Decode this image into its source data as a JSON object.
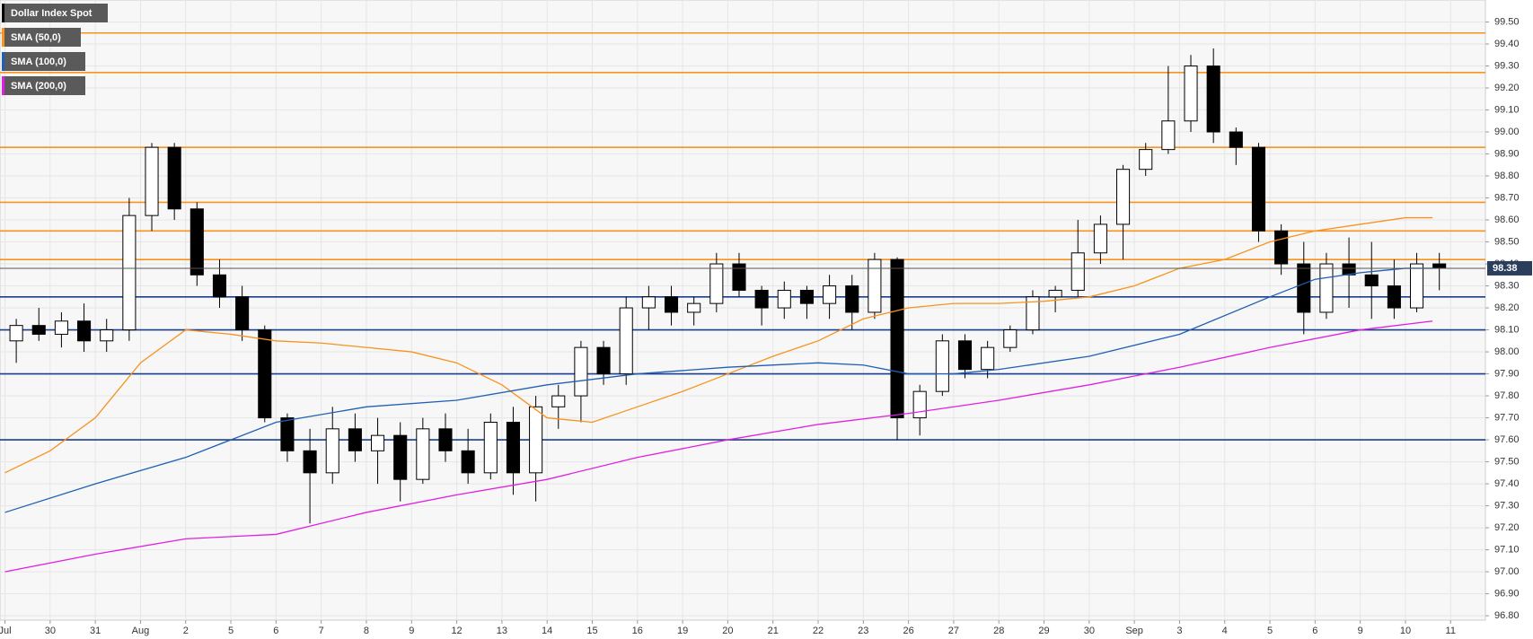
{
  "chart_data": {
    "type": "candlestick",
    "name": "Dollar Index Spot",
    "xlim": [
      -0.11,
      32.77
    ],
    "ylim": [
      96.78,
      99.6
    ],
    "grid": true,
    "xticks": [
      {
        "value": 0,
        "label": "Jul"
      },
      {
        "value": 1,
        "label": "30"
      },
      {
        "value": 2,
        "label": "31"
      },
      {
        "value": 3,
        "label": "Aug"
      },
      {
        "value": 4,
        "label": "2"
      },
      {
        "value": 5,
        "label": "5"
      },
      {
        "value": 6,
        "label": "6"
      },
      {
        "value": 7,
        "label": "7"
      },
      {
        "value": 8,
        "label": "8"
      },
      {
        "value": 9,
        "label": "9"
      },
      {
        "value": 10,
        "label": "12"
      },
      {
        "value": 11,
        "label": "13"
      },
      {
        "value": 12,
        "label": "14"
      },
      {
        "value": 13,
        "label": "15"
      },
      {
        "value": 14,
        "label": "16"
      },
      {
        "value": 15,
        "label": "19"
      },
      {
        "value": 16,
        "label": "20"
      },
      {
        "value": 17,
        "label": "21"
      },
      {
        "value": 18,
        "label": "22"
      },
      {
        "value": 19,
        "label": "23"
      },
      {
        "value": 20,
        "label": "26"
      },
      {
        "value": 21,
        "label": "27"
      },
      {
        "value": 22,
        "label": "28"
      },
      {
        "value": 23,
        "label": "29"
      },
      {
        "value": 24,
        "label": "30"
      },
      {
        "value": 25,
        "label": "Sep"
      },
      {
        "value": 26,
        "label": "3"
      },
      {
        "value": 27,
        "label": "4"
      },
      {
        "value": 28,
        "label": "5"
      },
      {
        "value": 29,
        "label": "6"
      },
      {
        "value": 30,
        "label": "9"
      },
      {
        "value": 31,
        "label": "10"
      },
      {
        "value": 32,
        "label": "11"
      }
    ],
    "yticks": [
      {
        "value": 96.8,
        "label": "96.80"
      },
      {
        "value": 96.9,
        "label": "96.90"
      },
      {
        "value": 97.0,
        "label": "97.00"
      },
      {
        "value": 97.1,
        "label": "97.10"
      },
      {
        "value": 97.2,
        "label": "97.20"
      },
      {
        "value": 97.3,
        "label": "97.30"
      },
      {
        "value": 97.4,
        "label": "97.40"
      },
      {
        "value": 97.5,
        "label": "97.50"
      },
      {
        "value": 97.6,
        "label": "97.60"
      },
      {
        "value": 97.7,
        "label": "97.70"
      },
      {
        "value": 97.8,
        "label": "97.80"
      },
      {
        "value": 97.9,
        "label": "97.90"
      },
      {
        "value": 98.0,
        "label": "98.00"
      },
      {
        "value": 98.1,
        "label": "98.10"
      },
      {
        "value": 98.2,
        "label": "98.20"
      },
      {
        "value": 98.3,
        "label": "98.30"
      },
      {
        "value": 98.4,
        "label": "98.40"
      },
      {
        "value": 98.5,
        "label": "98.50"
      },
      {
        "value": 98.6,
        "label": "98.60"
      },
      {
        "value": 98.7,
        "label": "98.70"
      },
      {
        "value": 98.8,
        "label": "98.80"
      },
      {
        "value": 98.9,
        "label": "98.90"
      },
      {
        "value": 99.0,
        "label": "99.00"
      },
      {
        "value": 99.1,
        "label": "99.10"
      },
      {
        "value": 99.2,
        "label": "99.20"
      },
      {
        "value": 99.3,
        "label": "99.30"
      },
      {
        "value": 99.4,
        "label": "99.40"
      },
      {
        "value": 99.5,
        "label": "99.50"
      }
    ],
    "x": [
      0.25,
      0.75,
      1.25,
      1.75,
      2.25,
      2.75,
      3.25,
      3.75,
      4.25,
      4.75,
      5.25,
      5.75,
      6.25,
      6.75,
      7.25,
      7.75,
      8.25,
      8.75,
      9.25,
      9.75,
      10.25,
      10.75,
      11.25,
      11.75,
      12.25,
      12.75,
      13.25,
      13.75,
      14.25,
      14.75,
      15.25,
      15.75,
      16.25,
      16.75,
      17.25,
      17.75,
      18.25,
      18.75,
      19.25,
      19.75,
      20.25,
      20.75,
      21.25,
      21.75,
      22.25,
      22.75,
      23.25,
      23.75,
      24.25,
      24.75,
      25.25,
      25.75,
      26.25,
      26.75,
      27.25,
      27.75,
      28.25,
      28.75,
      29.25,
      29.75,
      30.25,
      30.75,
      31.25,
      31.75
    ],
    "open": [
      98.05,
      98.12,
      98.08,
      98.14,
      98.05,
      98.1,
      98.62,
      98.93,
      98.65,
      98.35,
      98.25,
      98.1,
      97.7,
      97.55,
      97.45,
      97.65,
      97.55,
      97.62,
      97.42,
      97.65,
      97.55,
      97.45,
      97.68,
      97.45,
      97.75,
      97.8,
      98.02,
      97.9,
      98.2,
      98.25,
      98.18,
      98.22,
      98.4,
      98.28,
      98.2,
      98.28,
      98.22,
      98.3,
      98.18,
      98.42,
      97.7,
      97.82,
      98.05,
      97.92,
      98.02,
      98.1,
      98.25,
      98.28,
      98.45,
      98.58,
      98.83,
      98.92,
      99.05,
      99.3,
      99.0,
      98.93,
      98.55,
      98.4,
      98.18,
      98.4,
      98.35,
      98.3,
      98.2,
      98.4
    ],
    "high": [
      98.15,
      98.2,
      98.18,
      98.22,
      98.15,
      98.7,
      98.95,
      98.95,
      98.68,
      98.42,
      98.3,
      98.12,
      97.72,
      97.65,
      97.75,
      97.72,
      97.7,
      97.68,
      97.7,
      97.72,
      97.65,
      97.72,
      97.75,
      97.8,
      97.85,
      98.05,
      98.05,
      98.25,
      98.3,
      98.3,
      98.25,
      98.45,
      98.45,
      98.3,
      98.32,
      98.3,
      98.35,
      98.35,
      98.45,
      98.43,
      97.85,
      98.08,
      98.08,
      98.05,
      98.12,
      98.28,
      98.3,
      98.6,
      98.62,
      98.85,
      98.95,
      99.3,
      99.35,
      99.38,
      99.02,
      98.95,
      98.58,
      98.5,
      98.45,
      98.52,
      98.5,
      98.42,
      98.45,
      98.45
    ],
    "low": [
      97.95,
      98.05,
      98.02,
      98.0,
      98.0,
      98.05,
      98.55,
      98.6,
      98.3,
      98.2,
      98.05,
      97.68,
      97.5,
      97.22,
      97.4,
      97.5,
      97.4,
      97.32,
      97.4,
      97.5,
      97.4,
      97.42,
      97.35,
      97.32,
      97.65,
      97.68,
      97.85,
      97.85,
      98.1,
      98.12,
      98.12,
      98.18,
      98.25,
      98.12,
      98.15,
      98.15,
      98.15,
      98.1,
      98.15,
      97.6,
      97.62,
      97.8,
      97.88,
      97.88,
      98.0,
      98.08,
      98.18,
      98.25,
      98.4,
      98.42,
      98.8,
      98.9,
      99.0,
      98.95,
      98.85,
      98.5,
      98.35,
      98.08,
      98.15,
      98.2,
      98.15,
      98.15,
      98.18,
      98.28
    ],
    "close": [
      98.12,
      98.08,
      98.14,
      98.05,
      98.1,
      98.62,
      98.93,
      98.65,
      98.35,
      98.25,
      98.1,
      97.7,
      97.55,
      97.45,
      97.65,
      97.55,
      97.62,
      97.42,
      97.65,
      97.55,
      97.45,
      97.68,
      97.45,
      97.75,
      97.8,
      98.02,
      97.9,
      98.2,
      98.25,
      98.18,
      98.22,
      98.4,
      98.28,
      98.2,
      98.28,
      98.22,
      98.3,
      98.18,
      98.42,
      97.7,
      97.82,
      98.05,
      97.92,
      98.02,
      98.1,
      98.25,
      98.28,
      98.45,
      98.58,
      98.83,
      98.92,
      99.05,
      99.3,
      99.0,
      98.93,
      98.55,
      98.4,
      98.18,
      98.4,
      98.35,
      98.3,
      98.2,
      98.4,
      98.38
    ],
    "series": [
      {
        "name": "SMA (50,0)",
        "color": "#f7931e",
        "x": [
          0,
          1,
          2,
          3,
          4,
          5,
          6,
          7,
          8,
          9,
          10,
          11,
          12,
          13,
          14,
          15,
          16,
          17,
          18,
          19,
          20,
          21,
          22,
          23,
          24,
          25,
          26,
          27,
          28,
          29,
          30,
          31,
          31.6
        ],
        "values": [
          97.45,
          97.55,
          97.7,
          97.95,
          98.1,
          98.08,
          98.05,
          98.04,
          98.02,
          98.0,
          97.95,
          97.85,
          97.7,
          97.68,
          97.75,
          97.82,
          97.9,
          97.98,
          98.05,
          98.15,
          98.2,
          98.22,
          98.22,
          98.23,
          98.25,
          98.3,
          98.38,
          98.42,
          98.5,
          98.55,
          98.58,
          98.61,
          98.61
        ]
      },
      {
        "name": "SMA (100,0)",
        "color": "#1f5fb4",
        "x": [
          0,
          2,
          4,
          6,
          8,
          10,
          12,
          14,
          16,
          18,
          19,
          20,
          21,
          22,
          24,
          26,
          28,
          29,
          30,
          31,
          31.6
        ],
        "values": [
          97.27,
          97.4,
          97.52,
          97.68,
          97.75,
          97.78,
          97.85,
          97.9,
          97.93,
          97.95,
          97.94,
          97.9,
          97.9,
          97.92,
          97.98,
          98.08,
          98.25,
          98.33,
          98.36,
          98.38,
          98.38
        ]
      },
      {
        "name": "SMA (200,0)",
        "color": "#e020e0",
        "x": [
          0,
          2,
          4,
          6,
          8,
          10,
          12,
          14,
          16,
          18,
          20,
          22,
          24,
          26,
          28,
          30,
          31.6
        ],
        "values": [
          97.0,
          97.08,
          97.15,
          97.17,
          97.27,
          97.35,
          97.42,
          97.52,
          97.6,
          97.67,
          97.72,
          97.78,
          97.85,
          97.93,
          98.02,
          98.1,
          98.14
        ]
      }
    ],
    "levels": [
      {
        "value": 99.45,
        "color": "#f7931e"
      },
      {
        "value": 99.27,
        "color": "#f7931e"
      },
      {
        "value": 98.93,
        "color": "#f7931e"
      },
      {
        "value": 98.68,
        "color": "#f7931e"
      },
      {
        "value": 98.55,
        "color": "#f7931e"
      },
      {
        "value": 98.42,
        "color": "#f7931e"
      },
      {
        "value": 98.25,
        "color": "#1a3f8f"
      },
      {
        "value": 98.1,
        "color": "#1a3f8f"
      },
      {
        "value": 97.9,
        "color": "#1a3f8f"
      },
      {
        "value": 97.6,
        "color": "#1a3f8f"
      }
    ],
    "last_price": 98.38
  }
}
